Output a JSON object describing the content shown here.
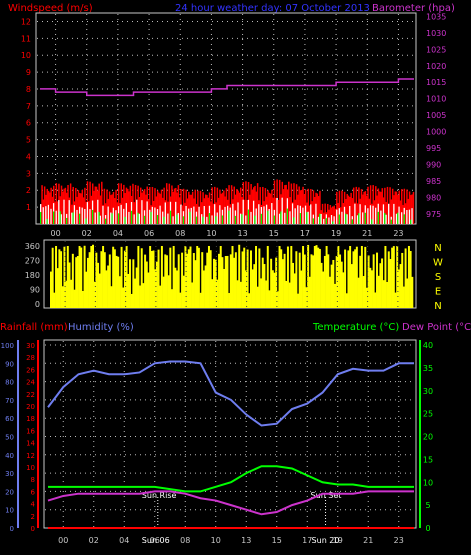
{
  "header": {
    "windspeed_label": "Windspeed (m/s)",
    "title": "24 hour weather day: 07 October 2013",
    "barometer_label": "Barometer (hpa)"
  },
  "labels": {
    "rainfall": "Rainfall (mm)",
    "humidity": "Humidity (%)",
    "temperature": "Temperature (°C)",
    "dewpoint": "Dew Point (°C)",
    "sunrise": "Sun Rise",
    "sunset": "Sun Set",
    "sunrise_time": "Sun 06",
    "sunset_time": "Sun 20"
  },
  "colors": {
    "red": "#ff0000",
    "green": "#00ff00",
    "white": "#ffffff",
    "magenta": "#cc33cc",
    "yellow": "#ffff00",
    "blue": "#6f7ef0",
    "text_blue": "#3333ff",
    "axis_white": "#c8c8c8",
    "grid": "#bbbbbb"
  },
  "chart_data": [
    {
      "type": "area",
      "name": "wind",
      "x_ticks": [
        "00",
        "02",
        "04",
        "06",
        "08",
        "10",
        "13",
        "15",
        "17",
        "19",
        "21",
        "23"
      ],
      "wind_ticks": [
        1,
        2,
        3,
        4,
        5,
        6,
        7,
        8,
        9,
        10,
        11,
        12
      ],
      "baro_ticks": [
        975,
        980,
        985,
        990,
        995,
        1000,
        1005,
        1010,
        1015,
        1020,
        1025,
        1030,
        1035
      ],
      "wind_ylim": [
        0,
        12.5
      ],
      "baro_ylim": [
        972,
        1036
      ],
      "gust_hourly": [
        2.1,
        2.2,
        2.0,
        2.3,
        1.9,
        2.2,
        2.1,
        2.0,
        2.2,
        1.9,
        1.8,
        2.0,
        2.1,
        2.3,
        2.0,
        2.4,
        2.2,
        1.9,
        1.1,
        1.8,
        2.0,
        2.1,
        2.0,
        1.9
      ],
      "speed_hourly": [
        1.1,
        1.2,
        1.0,
        1.2,
        0.9,
        1.1,
        1.2,
        1.0,
        1.1,
        1.0,
        0.9,
        1.0,
        1.1,
        1.2,
        1.1,
        1.3,
        1.1,
        1.0,
        0.5,
        0.9,
        1.0,
        1.1,
        1.0,
        0.9
      ],
      "barometer": {
        "x": [
          0,
          1,
          2,
          3,
          4,
          5,
          6,
          7,
          8,
          9,
          10,
          11,
          12,
          13,
          14,
          15,
          16,
          17,
          18,
          19,
          20,
          21,
          22,
          23,
          24
        ],
        "values": [
          1013,
          1012,
          1012,
          1011,
          1011,
          1011,
          1012,
          1012,
          1012,
          1012,
          1012,
          1013,
          1014,
          1014,
          1014,
          1014,
          1014,
          1014,
          1014,
          1015,
          1015,
          1015,
          1015,
          1016,
          1016
        ]
      }
    },
    {
      "type": "bar",
      "name": "wind_direction",
      "ylabels": [
        "360",
        "270",
        "180",
        "90",
        "0"
      ],
      "compass": [
        "N",
        "W",
        "S",
        "E",
        "N"
      ],
      "ylim": [
        0,
        360
      ],
      "hourly_direction": [
        340,
        300,
        350,
        320,
        340,
        280,
        330,
        350,
        310,
        340,
        320,
        300,
        350,
        330,
        290,
        340,
        320,
        350,
        300,
        330,
        340,
        310,
        350,
        330
      ]
    },
    {
      "type": "line",
      "name": "temp_humidity_rain",
      "x_ticks": [
        "00",
        "02",
        "04",
        "06",
        "08",
        "10",
        "13",
        "15",
        "17",
        "19",
        "21",
        "23"
      ],
      "rain_ticks": [
        0,
        2,
        4,
        6,
        8,
        10,
        12,
        14,
        16,
        18,
        20,
        22,
        24,
        26,
        28,
        30
      ],
      "humidity_ticks": [
        0,
        10,
        20,
        30,
        40,
        50,
        60,
        70,
        80,
        90,
        100
      ],
      "temp_ticks": [
        0,
        5,
        10,
        15,
        20,
        25,
        30,
        35,
        40
      ],
      "rain_ylim": [
        0,
        30
      ],
      "humidity_ylim": [
        0,
        100
      ],
      "temp_ylim": [
        0,
        40
      ],
      "hours": [
        0,
        1,
        2,
        3,
        4,
        5,
        6,
        7,
        8,
        9,
        10,
        11,
        12,
        13,
        14,
        15,
        16,
        17,
        18,
        19,
        20,
        21,
        22,
        23,
        24
      ],
      "humidity": [
        66,
        77,
        84,
        86,
        84,
        84,
        85,
        90,
        91,
        91,
        90,
        74,
        70,
        62,
        56,
        57,
        65,
        68,
        74,
        84,
        87,
        86,
        86,
        90,
        90
      ],
      "temperature": [
        9,
        9,
        9,
        9,
        9,
        9,
        9,
        9,
        8.5,
        8,
        8,
        9,
        10,
        12,
        13.5,
        13.5,
        13,
        11.5,
        10,
        9.5,
        9.5,
        9,
        9,
        9,
        9
      ],
      "dewpoint": [
        6,
        7,
        7.5,
        7.5,
        7.5,
        7.5,
        7.5,
        8,
        8,
        7.5,
        6.5,
        6,
        5,
        4,
        3,
        3.5,
        5,
        6,
        7.5,
        7.5,
        7.5,
        8,
        8,
        8,
        8
      ],
      "rainfall": [
        0,
        0,
        0,
        0,
        0,
        0,
        0,
        0,
        0,
        0,
        0,
        0,
        0,
        0,
        0,
        0,
        0,
        0,
        0,
        0,
        0,
        0,
        0,
        0,
        0
      ],
      "sunrise_hour": 7.2,
      "sunset_hour": 18.2
    }
  ]
}
